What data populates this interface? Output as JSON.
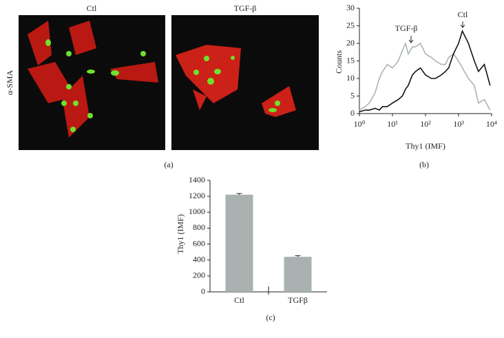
{
  "panel_a": {
    "columns": [
      "Ctl",
      "TGF-β"
    ],
    "row_label": "α-SMA",
    "caption": "(a)"
  },
  "chart_data": [
    {
      "type": "line",
      "caption": "(b)",
      "x_label": "Thy1 (IMF)",
      "y_label": "Counts",
      "x_log": true,
      "xlim": [
        1,
        10000
      ],
      "xticks": [
        {
          "value": 1,
          "label": "10⁰"
        },
        {
          "value": 10,
          "label": "10¹"
        },
        {
          "value": 100,
          "label": "10²"
        },
        {
          "value": 1000,
          "label": "10³"
        },
        {
          "value": 10000,
          "label": "10⁴"
        }
      ],
      "ylim": [
        0,
        30
      ],
      "yticks": [
        0,
        5,
        10,
        15,
        20,
        25,
        30
      ],
      "x": [
        1,
        1.5,
        2,
        3,
        4,
        5,
        7,
        10,
        15,
        20,
        25,
        30,
        40,
        50,
        70,
        100,
        150,
        200,
        300,
        400,
        500,
        700,
        1000,
        1300,
        2000,
        3000,
        4000,
        6000,
        9000
      ],
      "series": [
        {
          "name": "Ctl",
          "color": "#111111",
          "values": [
            0.5,
            1,
            1,
            1.5,
            1,
            2,
            2,
            3,
            4,
            5,
            7,
            8,
            11,
            12,
            13,
            11,
            10,
            10,
            11,
            12,
            13,
            17,
            20,
            23.5,
            20,
            15,
            12,
            14,
            8
          ]
        },
        {
          "name": "TGF-β",
          "color": "#aab4b2",
          "values": [
            1,
            2,
            3,
            6,
            10,
            12,
            14,
            13,
            15,
            18,
            20,
            17,
            19,
            19,
            20,
            17,
            16,
            15,
            14,
            14,
            16,
            17,
            15,
            13,
            10,
            8,
            3,
            4,
            1
          ]
        }
      ],
      "annotations": [
        "TGF-β",
        "Ctl"
      ]
    },
    {
      "type": "bar",
      "caption": "(c)",
      "y_label": "Thy1 (IMF)",
      "categories": [
        "Ctl",
        "TGFβ"
      ],
      "values": [
        1220,
        440
      ],
      "errors": [
        15,
        15
      ],
      "color": "#a9b2b1",
      "ylim": [
        0,
        1400
      ],
      "yticks": [
        0,
        200,
        400,
        600,
        800,
        1000,
        1200,
        1400
      ]
    }
  ]
}
